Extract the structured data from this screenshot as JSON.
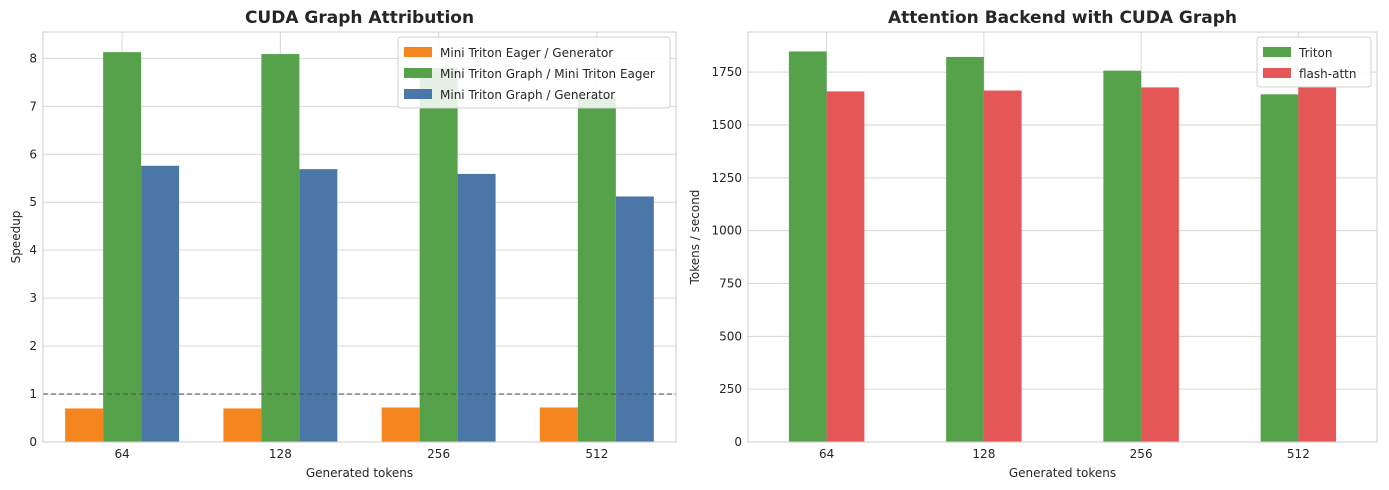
{
  "chart_data": [
    {
      "type": "bar",
      "title": "CUDA Graph Attribution",
      "xlabel": "Generated tokens",
      "ylabel": "Speedup",
      "categories": [
        "64",
        "128",
        "256",
        "512"
      ],
      "ylim": [
        0,
        8.55
      ],
      "yticks": [
        0,
        1,
        2,
        3,
        4,
        5,
        6,
        7,
        8
      ],
      "reference_line": 1,
      "grid": true,
      "legend_position": "upper right",
      "series": [
        {
          "name": "Mini Triton Eager / Generator",
          "color": "#f5861f",
          "values": [
            0.7,
            0.7,
            0.72,
            0.72
          ]
        },
        {
          "name": "Mini Triton Graph / Mini Triton Eager",
          "color": "#55a24b",
          "values": [
            8.13,
            8.09,
            7.8,
            7.2
          ]
        },
        {
          "name": "Mini Triton Graph / Generator",
          "color": "#4a77a8",
          "values": [
            5.76,
            5.69,
            5.59,
            5.12
          ]
        }
      ]
    },
    {
      "type": "bar",
      "title": "Attention Backend with CUDA Graph",
      "xlabel": "Generated tokens",
      "ylabel": "Tokens / second",
      "categories": [
        "64",
        "128",
        "256",
        "512"
      ],
      "ylim": [
        0,
        1940
      ],
      "yticks": [
        0,
        250,
        500,
        750,
        1000,
        1250,
        1500,
        1750
      ],
      "grid": true,
      "legend_position": "upper right",
      "series": [
        {
          "name": "Triton",
          "color": "#55a24b",
          "values": [
            1848,
            1822,
            1757,
            1645
          ]
        },
        {
          "name": "flash-attn",
          "color": "#e55756",
          "values": [
            1659,
            1663,
            1678,
            1678
          ]
        }
      ]
    }
  ]
}
